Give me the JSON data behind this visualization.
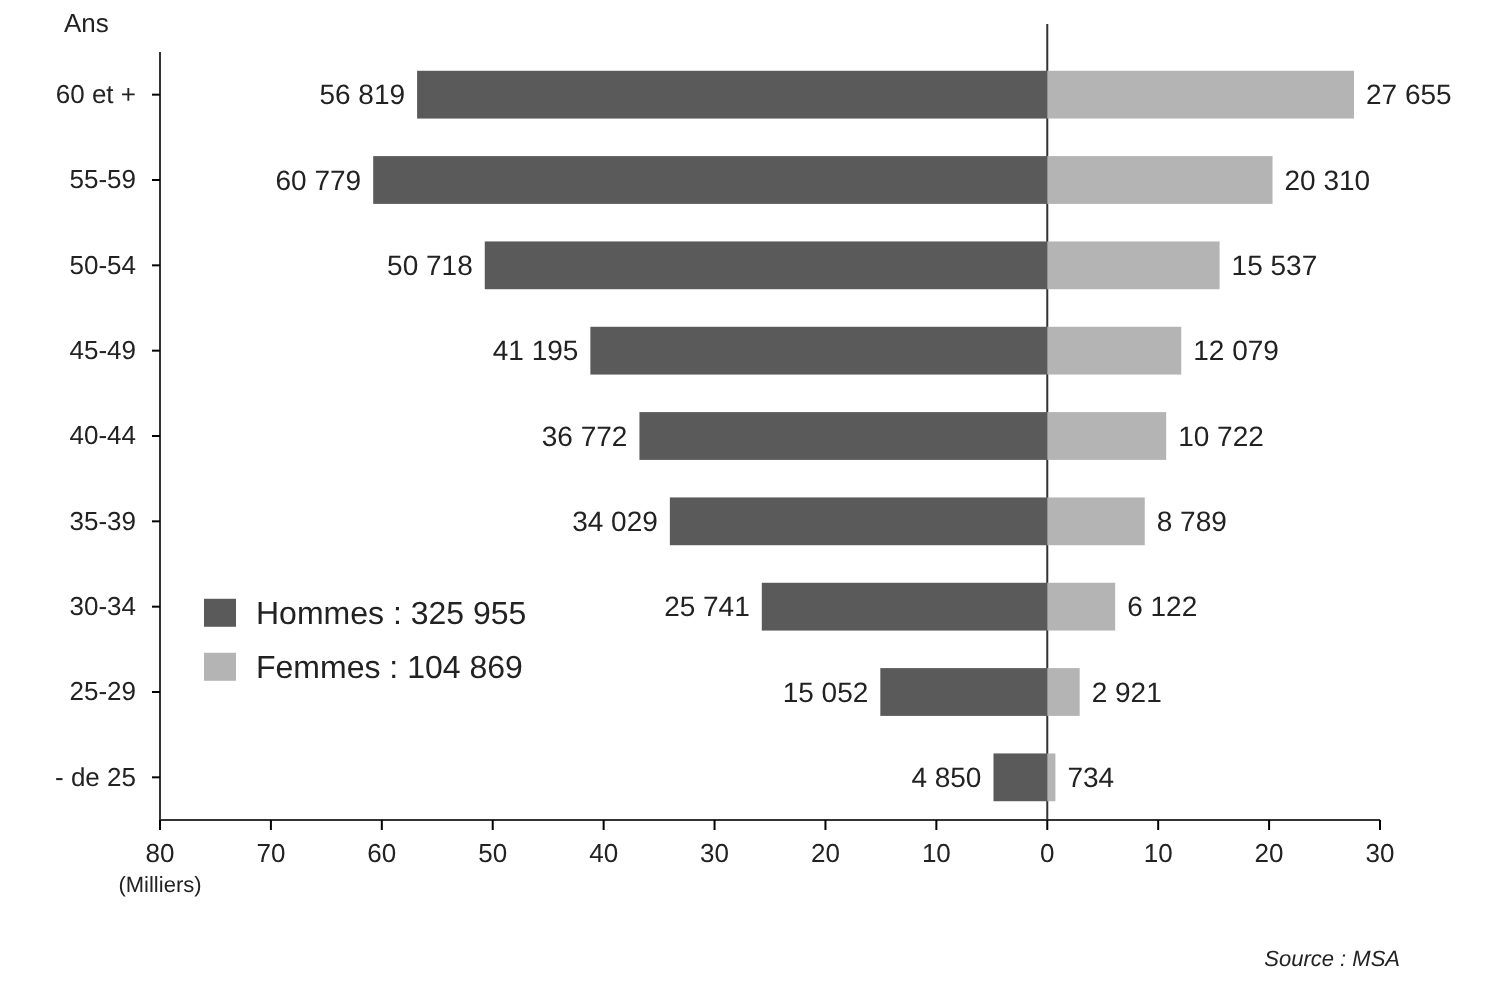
{
  "chart_data": {
    "type": "bar",
    "orientation": "horizontal",
    "stacked": true,
    "ylabel": "Ans",
    "xlabel": "(Milliers)",
    "categories": [
      "60 et +",
      "55-59",
      "50-54",
      "45-49",
      "40-44",
      "35-39",
      "30-34",
      "25-29",
      "- de 25"
    ],
    "series": [
      {
        "name": "Hommes : 325 955",
        "color": "#5a5a5a",
        "values": [
          -56.819,
          -60.779,
          -50.718,
          -41.195,
          -36.772,
          -34.029,
          -25.741,
          -15.052,
          -4.85
        ]
      },
      {
        "name": "Femmes : 104 869",
        "color": "#b4b4b4",
        "values": [
          27.655,
          20.31,
          15.537,
          12.079,
          10.722,
          8.789,
          6.122,
          2.921,
          0.734
        ]
      }
    ],
    "xlim": [
      -80,
      30
    ],
    "xticks": [
      {
        "value": -80,
        "label": "80"
      },
      {
        "value": -70,
        "label": "70"
      },
      {
        "value": -60,
        "label": "60"
      },
      {
        "value": -50,
        "label": "50"
      },
      {
        "value": -40,
        "label": "40"
      },
      {
        "value": -30,
        "label": "30"
      },
      {
        "value": -20,
        "label": "20"
      },
      {
        "value": -10,
        "label": "10"
      },
      0,
      10,
      20,
      30
    ],
    "legend": "bottom left",
    "annotations": [
      {
        "text": "56 819",
        "x": -56.819,
        "y": "60 et +"
      },
      {
        "text": "60 779",
        "x": -60.779,
        "y": "55-59"
      },
      {
        "text": "50 718",
        "x": -50.718,
        "y": "50-54"
      },
      {
        "text": "41 195",
        "x": -41.195,
        "y": "45-49"
      },
      {
        "text": "36 772",
        "x": -36.772,
        "y": "40-44"
      },
      {
        "text": "34 029",
        "x": -34.029,
        "y": "35-39"
      },
      {
        "text": "25 741",
        "x": -25.741,
        "y": "30-34"
      },
      {
        "text": "15 052",
        "x": -15.052,
        "y": "25-29"
      },
      {
        "text": "4 850",
        "x": -4.85,
        "y": "- de 25"
      },
      {
        "text": "27 655",
        "x": 27.655,
        "y": "60 et +"
      },
      {
        "text": "20 310",
        "x": 20.31,
        "y": "55-59"
      },
      {
        "text": "15 537",
        "x": 15.537,
        "y": "50-54"
      },
      {
        "text": "12 079",
        "x": 12.079,
        "y": "45-49"
      },
      {
        "text": "10 722",
        "x": 10.722,
        "y": "40-44"
      },
      {
        "text": "8 789",
        "x": 8.789,
        "y": "35-39"
      },
      {
        "text": "6 122",
        "x": 6.122,
        "y": "30-34"
      },
      {
        "text": "2 921",
        "x": 2.921,
        "y": "25-29"
      },
      {
        "text": "734",
        "x": 0.734,
        "y": "- de 25"
      },
      "Source : MSA"
    ]
  }
}
